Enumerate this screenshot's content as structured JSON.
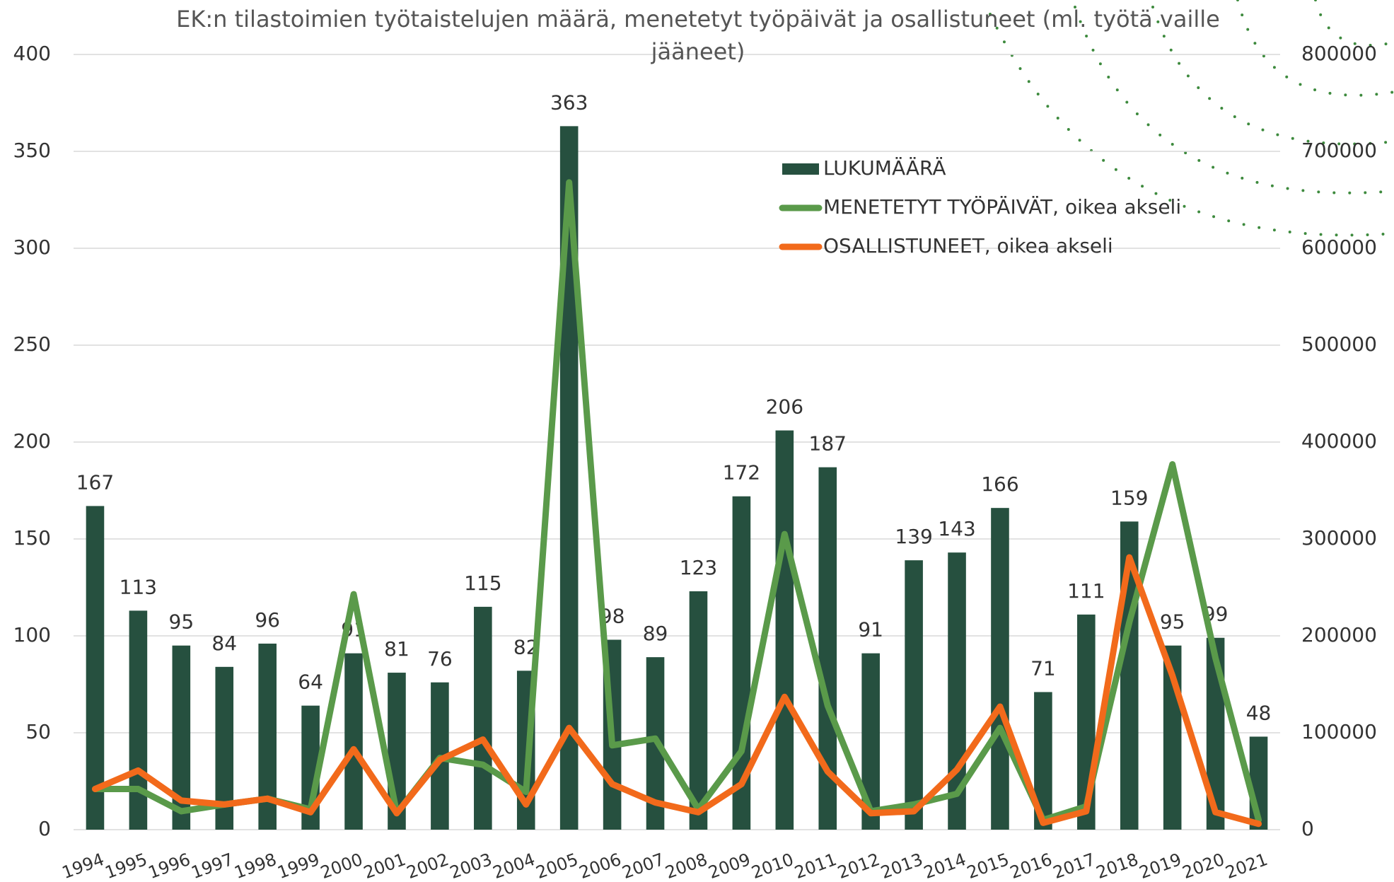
{
  "chart_data": {
    "type": "bar-line",
    "title": "EK:n tilastoimien työtaistelujen määrä, menetetyt työpäivät ja osallistuneet (ml. työtä vaille jääneet)",
    "categories": [
      "1994",
      "1995",
      "1996",
      "1997",
      "1998",
      "1999",
      "2000",
      "2001",
      "2002",
      "2003",
      "2004",
      "2005",
      "2006",
      "2007",
      "2008",
      "2009",
      "2010",
      "2011",
      "2012",
      "2013",
      "2014",
      "2015",
      "2016",
      "2017",
      "2018",
      "2019",
      "2020",
      "2021"
    ],
    "series": [
      {
        "name": "LUKUMÄÄRÄ",
        "type": "bar",
        "color": "#26503f",
        "axis": "y",
        "values": [
          167,
          113,
          95,
          84,
          96,
          64,
          91,
          81,
          76,
          115,
          82,
          363,
          98,
          89,
          123,
          172,
          206,
          187,
          91,
          139,
          143,
          166,
          71,
          111,
          159,
          95,
          99,
          48
        ]
      },
      {
        "name": "MENETETYT TYÖPÄIVÄT, oikea akseli",
        "type": "line",
        "color": "#5a9a4a",
        "axis": "y2",
        "values": [
          42000,
          42000,
          19000,
          26000,
          32000,
          21000,
          243000,
          17000,
          74000,
          67000,
          39000,
          668000,
          87000,
          94000,
          21000,
          81000,
          305000,
          128000,
          19000,
          26000,
          37000,
          105000,
          10000,
          24000,
          214000,
          377000,
          177000,
          10000
        ]
      },
      {
        "name": "OSALLISTUNEET, oikea akseli",
        "type": "line",
        "color": "#f26a1b",
        "axis": "y2",
        "values": [
          42000,
          61000,
          30000,
          26000,
          32000,
          18000,
          83000,
          17000,
          72000,
          93000,
          26000,
          105000,
          47000,
          28000,
          18000,
          47000,
          137000,
          60000,
          17000,
          19000,
          62000,
          127000,
          7000,
          19000,
          281000,
          159000,
          18000,
          6000
        ]
      }
    ],
    "ylim": [
      0,
      400
    ],
    "yticks": [
      0,
      50,
      100,
      150,
      200,
      250,
      300,
      350,
      400
    ],
    "y2lim": [
      0,
      800000
    ],
    "y2ticks": [
      0,
      100000,
      200000,
      300000,
      400000,
      500000,
      600000,
      700000,
      800000
    ],
    "grid": true
  }
}
